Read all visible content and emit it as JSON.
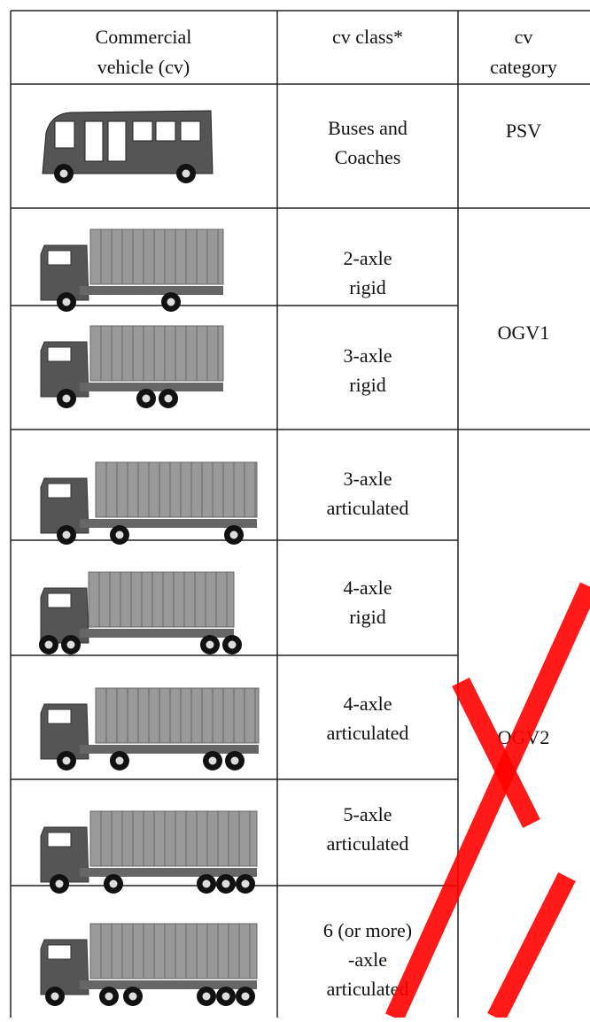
{
  "table": {
    "header": [
      [
        "Commercial",
        "vehicle (cv)"
      ],
      [
        "cv class*"
      ],
      [
        "cv",
        "category"
      ]
    ],
    "rows": [
      {
        "cv_class": [
          "Buses and",
          "Coaches"
        ]
      },
      {
        "cv_class": [
          "2-axle",
          "rigid"
        ]
      },
      {
        "cv_class": [
          "3-axle",
          "rigid"
        ]
      },
      {
        "cv_class": [
          "3-axle",
          "articulated"
        ]
      },
      {
        "cv_class": [
          "4-axle",
          "rigid"
        ]
      },
      {
        "cv_class": [
          "4-axle",
          "articulated"
        ]
      },
      {
        "cv_class": [
          "5-axle",
          "articulated"
        ]
      },
      {
        "cv_class": [
          "6 (or more)",
          "-axle",
          "articulated"
        ]
      }
    ],
    "categories": [
      "PSV",
      "OGV1",
      "OGV2"
    ]
  }
}
